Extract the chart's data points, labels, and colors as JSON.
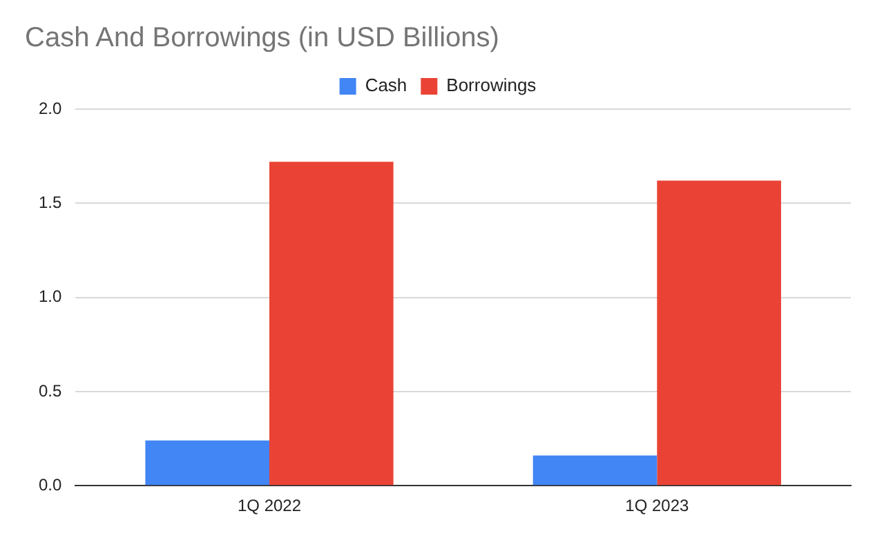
{
  "chart_data": {
    "type": "bar",
    "title": "Cash And Borrowings (in USD Billions)",
    "categories": [
      "1Q 2022",
      "1Q 2023"
    ],
    "series": [
      {
        "name": "Cash",
        "color": "#4285f4",
        "values": [
          0.24,
          0.16
        ]
      },
      {
        "name": "Borrowings",
        "color": "#ea4335",
        "values": [
          1.72,
          1.62
        ]
      }
    ],
    "ylim": [
      0,
      2
    ],
    "yticks": [
      {
        "value": 0,
        "label": "0.0"
      },
      {
        "value": 0.5,
        "label": "0.5"
      },
      {
        "value": 1,
        "label": "1.0"
      },
      {
        "value": 1.5,
        "label": "1.5"
      },
      {
        "value": 2,
        "label": "2.0"
      }
    ],
    "grid": "y",
    "legend": "top"
  }
}
